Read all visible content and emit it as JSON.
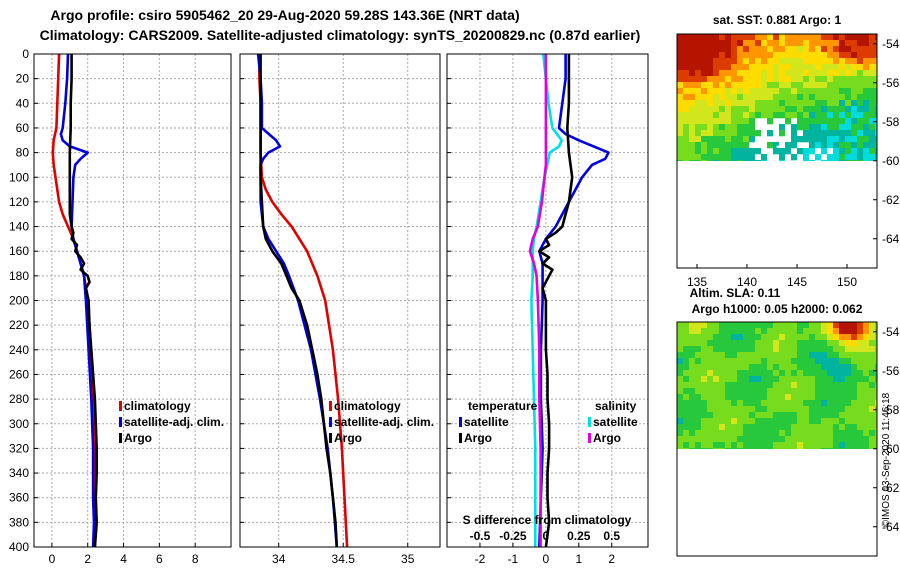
{
  "title": {
    "line1": "Argo profile: csiro 5905462_20 29-Aug-2020 59.28S 143.36E (NRT data)",
    "line2": "Climatology: CARS2009. Satellite-adjusted climatology: synTS_20200829.nc (0.87d earlier)"
  },
  "credit": "©IMOS 03-Sep-2020 11:46:18",
  "colors": {
    "climatology": "#e00000",
    "satellite_adj": "#0000e0",
    "argo": "#000000",
    "sat_temperature": "#0000e0",
    "sat_salinity": "#00e0e0",
    "argo_salinity": "#e000e0"
  },
  "chart_data": [
    {
      "id": "temperature-panel",
      "type": "line",
      "xlabel": "",
      "ylabel": "",
      "xlim": [
        -1,
        10
      ],
      "ylim": [
        400,
        0
      ],
      "xticks": [
        0,
        2,
        4,
        6,
        8
      ],
      "xtick_labels": [
        "0",
        "2",
        "4",
        "6",
        "8"
      ],
      "yticks": [
        0,
        20,
        40,
        60,
        80,
        100,
        120,
        140,
        160,
        180,
        200,
        220,
        240,
        260,
        280,
        300,
        320,
        340,
        360,
        380,
        400
      ],
      "ytick_labels": [
        "0",
        "20",
        "40",
        "60",
        "80",
        "100",
        "120",
        "140",
        "160",
        "180",
        "200",
        "220",
        "240",
        "260",
        "280",
        "300",
        "320",
        "340",
        "360",
        "380",
        "400"
      ],
      "legend": [
        "climatology",
        "satellite-adj. clim.",
        "Argo"
      ],
      "series": [
        {
          "name": "climatology",
          "color": "#e00000",
          "y": [
            0,
            20,
            40,
            60,
            70,
            80,
            90,
            100,
            120,
            130,
            140,
            150,
            160,
            170,
            180,
            200,
            220,
            260,
            300,
            340,
            400
          ],
          "x": [
            0.4,
            0.35,
            0.3,
            0.25,
            0.1,
            0.05,
            0.1,
            0.2,
            0.4,
            0.6,
            0.9,
            1.2,
            1.4,
            1.6,
            1.8,
            2.0,
            2.1,
            2.25,
            2.35,
            2.4,
            2.4
          ]
        },
        {
          "name": "satellite-adj. clim.",
          "color": "#0000e0",
          "y": [
            0,
            20,
            40,
            60,
            65,
            70,
            75,
            80,
            85,
            90,
            100,
            140,
            150,
            160,
            170,
            180,
            200,
            240,
            280,
            320,
            360,
            380,
            400
          ],
          "x": [
            0.9,
            0.85,
            0.75,
            0.6,
            0.5,
            0.6,
            1.0,
            2.0,
            1.6,
            1.3,
            1.2,
            1.1,
            1.2,
            1.4,
            1.6,
            1.8,
            1.9,
            2.05,
            2.2,
            2.3,
            2.3,
            2.35,
            2.3
          ]
        },
        {
          "name": "Argo",
          "color": "#000000",
          "y": [
            0,
            20,
            40,
            60,
            80,
            100,
            120,
            130,
            140,
            145,
            150,
            155,
            160,
            165,
            170,
            175,
            180,
            185,
            190,
            200,
            220,
            240,
            260,
            280,
            300,
            320,
            340,
            360,
            380,
            400
          ],
          "x": [
            1.1,
            1.1,
            1.05,
            1.05,
            1.0,
            1.0,
            1.0,
            1.0,
            1.1,
            1.2,
            1.1,
            1.4,
            1.3,
            1.6,
            1.8,
            1.6,
            2.0,
            2.1,
            1.9,
            2.05,
            2.1,
            2.2,
            2.3,
            2.4,
            2.45,
            2.5,
            2.5,
            2.45,
            2.5,
            2.4
          ]
        }
      ]
    },
    {
      "id": "salinity-panel",
      "type": "line",
      "xlabel": "",
      "ylabel": "",
      "xlim": [
        33.7,
        35.25
      ],
      "ylim": [
        400,
        0
      ],
      "xticks": [
        34,
        34.5,
        35
      ],
      "xtick_labels": [
        "34",
        "34.5",
        "35"
      ],
      "legend": [
        "climatology",
        "satellite-adj. clim.",
        "Argo"
      ],
      "series": [
        {
          "name": "climatology",
          "color": "#e00000",
          "y": [
            0,
            20,
            40,
            60,
            80,
            100,
            110,
            120,
            130,
            140,
            150,
            160,
            180,
            200,
            240,
            280,
            320,
            360,
            400
          ],
          "x": [
            33.85,
            33.85,
            33.86,
            33.86,
            33.86,
            33.87,
            33.9,
            33.95,
            34.02,
            34.1,
            34.16,
            34.22,
            34.3,
            34.36,
            34.42,
            34.46,
            34.49,
            34.51,
            34.53
          ]
        },
        {
          "name": "satellite-adj. clim.",
          "color": "#0000e0",
          "y": [
            0,
            20,
            40,
            60,
            70,
            75,
            80,
            85,
            90,
            100,
            120,
            140,
            150,
            160,
            170,
            180,
            200,
            240,
            280,
            320,
            360,
            400
          ],
          "x": [
            33.84,
            33.86,
            33.87,
            33.87,
            33.98,
            34.01,
            33.92,
            33.88,
            33.86,
            33.86,
            33.86,
            33.88,
            33.92,
            33.98,
            34.04,
            34.08,
            34.15,
            34.25,
            34.32,
            34.38,
            34.42,
            34.45
          ]
        },
        {
          "name": "Argo",
          "color": "#000000",
          "y": [
            0,
            20,
            40,
            60,
            80,
            100,
            120,
            140,
            150,
            160,
            170,
            180,
            190,
            200,
            220,
            240,
            260,
            280,
            300,
            320,
            340,
            360,
            380,
            400
          ],
          "x": [
            33.86,
            33.86,
            33.86,
            33.86,
            33.86,
            33.86,
            33.87,
            33.88,
            33.9,
            33.95,
            34.02,
            34.06,
            34.1,
            34.16,
            34.22,
            34.26,
            34.3,
            34.33,
            34.35,
            34.37,
            34.4,
            34.42,
            34.44,
            34.45
          ]
        }
      ]
    },
    {
      "id": "difference-panel",
      "type": "line",
      "title": "S difference from climatology",
      "xlabel": "",
      "ylabel": "",
      "xlim": [
        -3,
        3.1
      ],
      "ylim": [
        400,
        0
      ],
      "xticks": [
        -2,
        -1,
        0,
        1,
        2
      ],
      "xtick_labels": [
        "-2",
        "-1",
        "0",
        "1",
        "2"
      ],
      "salinity_ticks": [
        -0.5,
        -0.25,
        0,
        0.25,
        0.5
      ],
      "salinity_tick_labels": [
        "-0.5",
        "-0.25",
        "0",
        "0.25",
        "0.5"
      ],
      "legend_temperature": {
        "header": "temperature",
        "items": [
          "satellite",
          "Argo"
        ]
      },
      "legend_salinity": {
        "header": "salinity",
        "items": [
          "satellite",
          "Argo"
        ]
      },
      "series": [
        {
          "name": "temperature satellite",
          "color": "#0000e0",
          "y": [
            0,
            20,
            40,
            60,
            65,
            70,
            80,
            85,
            90,
            100,
            120,
            140,
            150,
            160,
            170,
            180,
            200,
            240,
            280,
            320,
            360,
            400
          ],
          "x": [
            0.6,
            0.6,
            0.5,
            0.4,
            0.6,
            1.0,
            1.9,
            1.8,
            1.4,
            1.1,
            0.7,
            0.3,
            0.0,
            -0.2,
            -0.1,
            -0.1,
            -0.1,
            -0.15,
            -0.15,
            -0.1,
            -0.15,
            -0.2
          ]
        },
        {
          "name": "temperature Argo",
          "color": "#000000",
          "y": [
            0,
            20,
            40,
            60,
            80,
            100,
            120,
            140,
            145,
            150,
            155,
            160,
            165,
            170,
            175,
            180,
            190,
            200,
            220,
            240,
            260,
            280,
            300,
            320,
            340,
            360,
            380,
            400
          ],
          "x": [
            0.7,
            0.7,
            0.7,
            0.65,
            0.7,
            0.8,
            0.7,
            0.5,
            0.3,
            0.0,
            0.1,
            -0.2,
            0.1,
            -0.1,
            0.2,
            0.1,
            -0.1,
            0.0,
            0.0,
            0.0,
            0.05,
            0.05,
            0.1,
            0.1,
            0.05,
            0.05,
            0.1,
            0.0
          ]
        },
        {
          "name": "salinity satellite",
          "color": "#00e0e0",
          "y": [
            0,
            20,
            40,
            60,
            70,
            75,
            80,
            90,
            100,
            120,
            140,
            150,
            160,
            180,
            200,
            240,
            280,
            320,
            360,
            400
          ],
          "x": [
            -0.02,
            0.0,
            0.02,
            0.05,
            0.12,
            0.1,
            0.03,
            0.01,
            -0.01,
            -0.04,
            -0.07,
            -0.09,
            -0.1,
            -0.1,
            -0.11,
            -0.1,
            -0.09,
            -0.08,
            -0.08,
            -0.08
          ]
        },
        {
          "name": "salinity Argo",
          "color": "#e000e0",
          "y": [
            0,
            20,
            40,
            60,
            80,
            90,
            100,
            120,
            140,
            150,
            160,
            170,
            180,
            200,
            240,
            280,
            320,
            360,
            400
          ],
          "x": [
            0.0,
            0.0,
            0.0,
            0.0,
            0.0,
            0.0,
            -0.01,
            -0.03,
            -0.06,
            -0.1,
            -0.12,
            -0.09,
            -0.07,
            -0.06,
            -0.05,
            -0.05,
            -0.04,
            -0.04,
            -0.04
          ]
        }
      ]
    },
    {
      "id": "sst-map",
      "type": "heatmap",
      "title": "sat. SST: 0.881 Argo: 1",
      "xlim": [
        133,
        153
      ],
      "ylim": [
        -65.5,
        -53.5
      ],
      "xticks": [
        135,
        140,
        145,
        150
      ],
      "xtick_labels": [
        "135",
        "140",
        "145",
        "150"
      ],
      "yticks": [
        -54,
        -56,
        -58,
        -60,
        -62,
        -64
      ],
      "ytick_labels": [
        "-54",
        "-56",
        "-58",
        "-60",
        "-62",
        "-64"
      ],
      "data_extent_lat": [
        -60,
        -53.5
      ],
      "palette": [
        "#00dcdc",
        "#00b4a0",
        "#28c83c",
        "#78dc1e",
        "#d2e61e",
        "#ffdc00",
        "#ff9600",
        "#dc3c00",
        "#b41400"
      ],
      "argo_position": [
        143.36,
        -59.28
      ]
    },
    {
      "id": "sla-map",
      "type": "heatmap",
      "title": "Altim. SLA: 0.11",
      "subtitle": "Argo h1000: 0.05 h2000: 0.062",
      "xlim": [
        133,
        153
      ],
      "ylim": [
        -65.5,
        -53.5
      ],
      "yticks": [
        -54,
        -56,
        -58,
        -60,
        -62,
        -64
      ],
      "ytick_labels": [
        "-54",
        "-56",
        "-58",
        "-60",
        "-62",
        "-64"
      ],
      "data_extent_lat": [
        -60,
        -53.5
      ],
      "palette": [
        "#00dcdc",
        "#00b4a0",
        "#28c83c",
        "#78dc1e",
        "#d2e61e",
        "#ffdc00",
        "#ff9600",
        "#dc3c00",
        "#b41400"
      ]
    }
  ]
}
